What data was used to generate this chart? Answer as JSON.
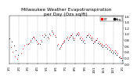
{
  "title": "Milwaukee Weather Evapotranspiration\nper Day (Ozs sq/ft)",
  "title_fontsize": 4.2,
  "bg_color": "#ffffff",
  "plot_bg": "#ffffff",
  "red_color": "#ff0000",
  "black_color": "#000000",
  "grid_color": "#aaaaaa",
  "ylim": [
    0.0,
    1.6
  ],
  "yticks": [
    0.0,
    0.2,
    0.4,
    0.6,
    0.8,
    1.0,
    1.2,
    1.4,
    1.6
  ],
  "ylabel_fontsize": 3.2,
  "xlabel_fontsize": 2.8,
  "marker_size": 1.5,
  "vline_positions": [
    32,
    60,
    91,
    121,
    152,
    182,
    213,
    244,
    274,
    305,
    335
  ],
  "red_x": [
    5,
    12,
    18,
    25,
    38,
    44,
    50,
    56,
    65,
    70,
    76,
    82,
    88,
    95,
    102,
    108,
    115,
    127,
    133,
    140,
    147,
    158,
    165,
    170,
    175,
    178,
    188,
    193,
    198,
    202,
    206,
    210,
    218,
    222,
    226,
    230,
    235,
    240,
    250,
    255,
    260,
    265,
    268,
    272,
    278,
    283,
    288,
    293,
    298,
    302,
    310,
    315,
    320,
    326,
    331,
    340,
    345,
    350,
    356,
    361
  ],
  "red_y": [
    0.55,
    0.4,
    0.25,
    0.15,
    0.35,
    0.5,
    0.6,
    0.65,
    0.7,
    0.8,
    0.9,
    0.85,
    0.75,
    0.7,
    0.8,
    0.95,
    1.0,
    0.85,
    0.95,
    1.05,
    0.95,
    0.65,
    0.55,
    0.65,
    0.75,
    0.8,
    0.9,
    0.85,
    0.95,
    1.0,
    0.9,
    0.85,
    1.0,
    1.05,
    1.0,
    0.9,
    0.85,
    0.8,
    0.95,
    1.0,
    0.95,
    0.9,
    0.85,
    0.75,
    0.8,
    0.85,
    0.75,
    0.7,
    0.65,
    0.6,
    0.65,
    0.6,
    0.55,
    0.5,
    0.45,
    0.45,
    0.4,
    0.35,
    0.25,
    0.2
  ],
  "black_x": [
    2,
    8,
    15,
    22,
    29,
    62,
    68,
    74,
    80,
    86,
    92,
    99,
    105,
    111,
    117,
    124,
    130,
    136,
    143,
    149,
    156,
    162,
    168,
    173,
    177,
    185,
    190,
    196,
    200,
    204,
    208,
    215,
    220,
    224,
    228,
    233,
    238,
    242,
    247,
    252,
    257,
    262,
    266,
    270,
    276,
    281,
    286,
    291,
    296,
    300,
    307,
    312,
    317,
    323,
    328,
    333,
    337,
    342,
    347,
    353,
    358,
    363
  ],
  "black_y": [
    0.85,
    0.75,
    0.6,
    0.45,
    0.3,
    0.65,
    0.75,
    0.85,
    0.9,
    0.8,
    0.65,
    0.65,
    0.75,
    0.9,
    0.95,
    0.9,
    1.0,
    1.1,
    1.0,
    0.9,
    0.6,
    0.5,
    0.6,
    0.7,
    0.75,
    0.85,
    0.8,
    0.9,
    0.95,
    0.85,
    0.8,
    0.95,
    1.0,
    0.95,
    0.85,
    0.8,
    0.75,
    0.7,
    0.9,
    0.95,
    0.9,
    0.85,
    0.8,
    0.7,
    0.75,
    0.8,
    0.7,
    0.65,
    0.6,
    0.55,
    0.6,
    0.55,
    0.5,
    0.45,
    0.4,
    0.35,
    0.4,
    0.35,
    0.3,
    0.22,
    0.18,
    0.12
  ],
  "xtick_positions": [
    1,
    32,
    60,
    91,
    121,
    152,
    182,
    213,
    244,
    274,
    305,
    335,
    365
  ],
  "xtick_labels": [
    "1/1",
    "2/1",
    "3/1",
    "4/1",
    "5/1",
    "6/1",
    "7/1",
    "8/1",
    "9/1",
    "10/1",
    "11/1",
    "12/1",
    "1/1"
  ],
  "legend_label_red": "ET",
  "legend_label_black": "Avg"
}
